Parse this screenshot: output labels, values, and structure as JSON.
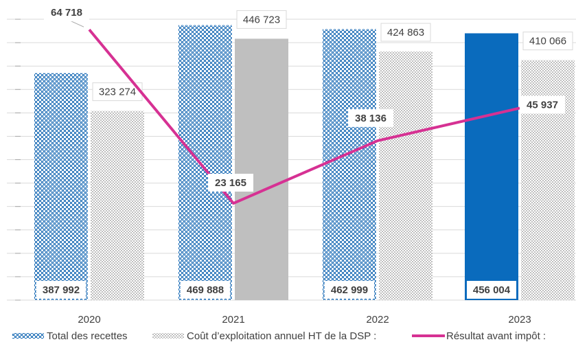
{
  "chart_data": {
    "type": "bar_line",
    "categories": [
      "2020",
      "2021",
      "2022",
      "2023"
    ],
    "series": [
      {
        "name": "Total des recettes",
        "color": "#1a6bb5",
        "fills": [
          "pattern",
          "pattern",
          "pattern",
          "solid"
        ],
        "values": [
          387992,
          469888,
          462999,
          456004
        ],
        "value_labels": [
          "387 992",
          "469 888",
          "462 999",
          "456 004"
        ]
      },
      {
        "name": "Coût d’exploitation annuel HT de la DSP :",
        "color": "#bfbfbf",
        "fills": [
          "pattern",
          "solid",
          "pattern",
          "pattern"
        ],
        "values": [
          323274,
          446723,
          424863,
          410066
        ],
        "value_labels": [
          "323 274",
          "446 723",
          "424 863",
          "410 066"
        ]
      },
      {
        "name": "Résultat avant impôt :",
        "color": "#d63193",
        "type": "line",
        "axis": "y2",
        "values": [
          64718,
          23165,
          38136,
          45937
        ],
        "value_labels": [
          "64 718",
          "23 165",
          "38 136",
          "45 937"
        ]
      }
    ],
    "ylim": [
      0,
      500000
    ],
    "yticks": [
      0,
      40000,
      80000,
      120000,
      160000,
      200000,
      240000,
      280000,
      320000,
      360000,
      400000,
      440000,
      480000
    ],
    "y2lim": [
      0,
      70000
    ],
    "grid": true
  }
}
